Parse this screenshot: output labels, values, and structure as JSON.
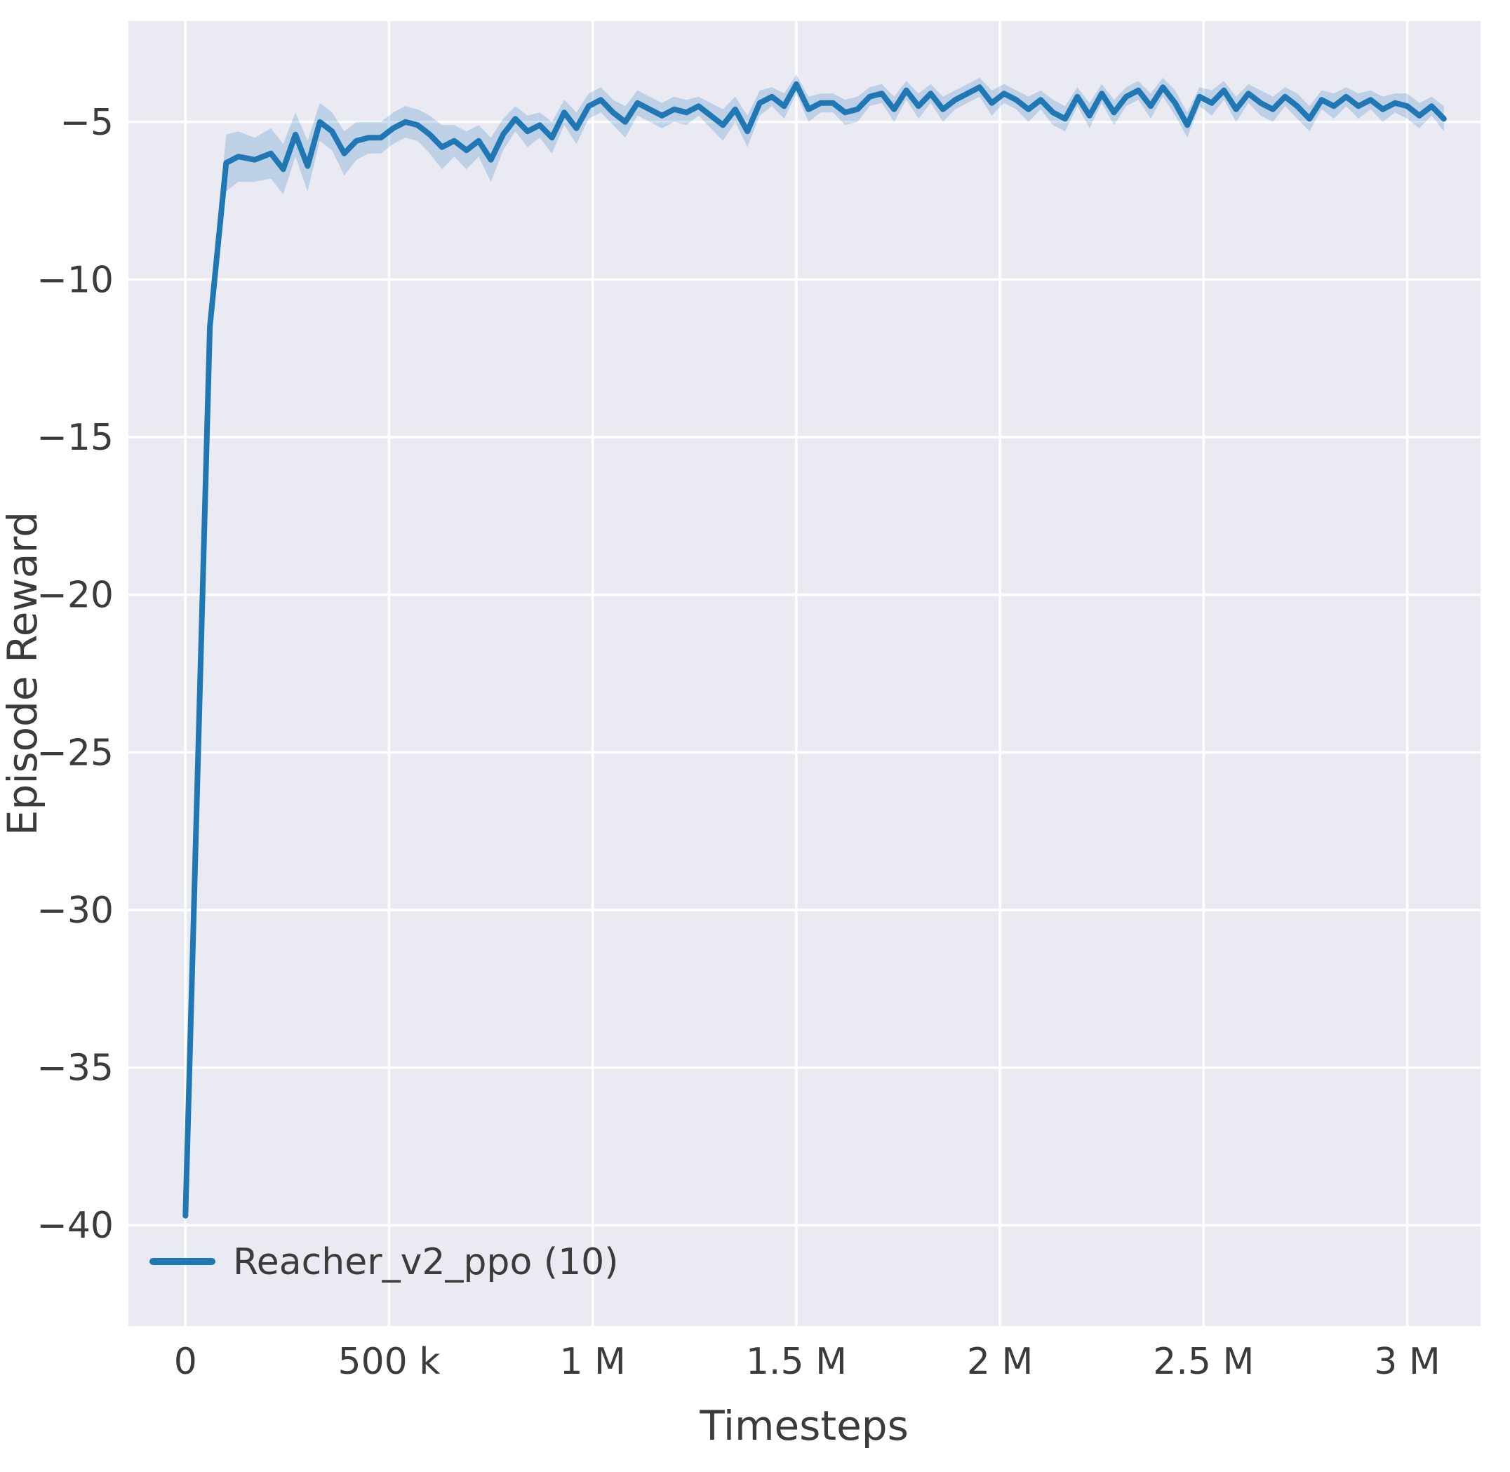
{
  "figure": {
    "background": "#ffffff",
    "plot_background": "#eaeaf2",
    "grid_color": "#ffffff",
    "text_color": "#3b3b3b"
  },
  "chart_data": {
    "type": "line",
    "title": "",
    "xlabel": "Timesteps",
    "ylabel": "Episode Reward",
    "grid": true,
    "legend_position": "lower left",
    "xlim": [
      -140000,
      3180000
    ],
    "ylim": [
      -43.2,
      -1.8
    ],
    "x_ticks": {
      "values": [
        0,
        500000,
        1000000,
        1500000,
        2000000,
        2500000,
        3000000
      ],
      "labels": [
        "0",
        "500 k",
        "1 M",
        "1.5 M",
        "2 M",
        "2.5 M",
        "3 M"
      ]
    },
    "y_ticks": {
      "values": [
        -5,
        -10,
        -15,
        -20,
        -25,
        -30,
        -35,
        -40
      ],
      "labels": [
        "−5",
        "−10",
        "−15",
        "−20",
        "−25",
        "−30",
        "−35",
        "−40"
      ]
    },
    "series": [
      {
        "name": "Reacher_v2_ppo (10)",
        "color": "#1f77b4",
        "band_opacity": 0.22,
        "line_width": 8,
        "x": [
          0,
          60000,
          100000,
          130000,
          170000,
          210000,
          240000,
          270000,
          300000,
          330000,
          360000,
          390000,
          420000,
          450000,
          480000,
          510000,
          540000,
          570000,
          600000,
          630000,
          660000,
          690000,
          720000,
          750000,
          780000,
          810000,
          840000,
          870000,
          900000,
          930000,
          960000,
          990000,
          1020000,
          1050000,
          1080000,
          1110000,
          1140000,
          1170000,
          1200000,
          1230000,
          1260000,
          1290000,
          1320000,
          1350000,
          1380000,
          1410000,
          1440000,
          1470000,
          1500000,
          1530000,
          1560000,
          1590000,
          1620000,
          1650000,
          1680000,
          1710000,
          1740000,
          1770000,
          1800000,
          1830000,
          1860000,
          1890000,
          1920000,
          1950000,
          1980000,
          2010000,
          2040000,
          2070000,
          2100000,
          2130000,
          2160000,
          2190000,
          2220000,
          2250000,
          2280000,
          2310000,
          2340000,
          2370000,
          2400000,
          2430000,
          2460000,
          2490000,
          2520000,
          2550000,
          2580000,
          2610000,
          2640000,
          2670000,
          2700000,
          2730000,
          2760000,
          2790000,
          2820000,
          2850000,
          2880000,
          2910000,
          2940000,
          2970000,
          3000000,
          3030000,
          3060000,
          3090000
        ],
        "y": [
          -39.7,
          -11.5,
          -6.3,
          -6.1,
          -6.2,
          -6.0,
          -6.5,
          -5.4,
          -6.4,
          -5.0,
          -5.3,
          -6.0,
          -5.6,
          -5.5,
          -5.5,
          -5.2,
          -5.0,
          -5.1,
          -5.4,
          -5.8,
          -5.6,
          -5.9,
          -5.6,
          -6.2,
          -5.4,
          -4.9,
          -5.3,
          -5.1,
          -5.5,
          -4.7,
          -5.2,
          -4.5,
          -4.3,
          -4.7,
          -5.0,
          -4.4,
          -4.6,
          -4.8,
          -4.6,
          -4.7,
          -4.5,
          -4.8,
          -5.1,
          -4.6,
          -5.3,
          -4.4,
          -4.2,
          -4.5,
          -3.8,
          -4.6,
          -4.4,
          -4.4,
          -4.7,
          -4.6,
          -4.2,
          -4.1,
          -4.6,
          -4.0,
          -4.5,
          -4.1,
          -4.6,
          -4.3,
          -4.1,
          -3.9,
          -4.4,
          -4.1,
          -4.3,
          -4.6,
          -4.3,
          -4.7,
          -4.9,
          -4.2,
          -4.8,
          -4.1,
          -4.7,
          -4.2,
          -4.0,
          -4.5,
          -3.9,
          -4.4,
          -5.1,
          -4.2,
          -4.4,
          -4.0,
          -4.6,
          -4.1,
          -4.4,
          -4.6,
          -4.2,
          -4.5,
          -4.9,
          -4.3,
          -4.5,
          -4.2,
          -4.5,
          -4.3,
          -4.6,
          -4.4,
          -4.5,
          -4.8,
          -4.5,
          -4.9
        ],
        "band_halfwidth": [
          0.5,
          0.6,
          0.9,
          0.8,
          0.7,
          0.8,
          0.8,
          0.7,
          0.8,
          0.6,
          0.6,
          0.7,
          0.6,
          0.5,
          0.5,
          0.5,
          0.5,
          0.5,
          0.6,
          0.7,
          0.5,
          0.6,
          0.5,
          0.7,
          0.5,
          0.4,
          0.5,
          0.4,
          0.5,
          0.4,
          0.5,
          0.4,
          0.4,
          0.4,
          0.5,
          0.4,
          0.4,
          0.4,
          0.4,
          0.4,
          0.3,
          0.4,
          0.5,
          0.4,
          0.5,
          0.4,
          0.3,
          0.4,
          0.3,
          0.4,
          0.3,
          0.3,
          0.4,
          0.4,
          0.3,
          0.3,
          0.4,
          0.3,
          0.4,
          0.3,
          0.4,
          0.3,
          0.3,
          0.3,
          0.4,
          0.3,
          0.3,
          0.4,
          0.3,
          0.4,
          0.4,
          0.3,
          0.4,
          0.3,
          0.4,
          0.3,
          0.3,
          0.4,
          0.3,
          0.4,
          0.4,
          0.3,
          0.4,
          0.3,
          0.4,
          0.3,
          0.4,
          0.4,
          0.3,
          0.4,
          0.4,
          0.3,
          0.4,
          0.3,
          0.4,
          0.3,
          0.4,
          0.3,
          0.4,
          0.4,
          0.3,
          0.4
        ]
      }
    ]
  }
}
